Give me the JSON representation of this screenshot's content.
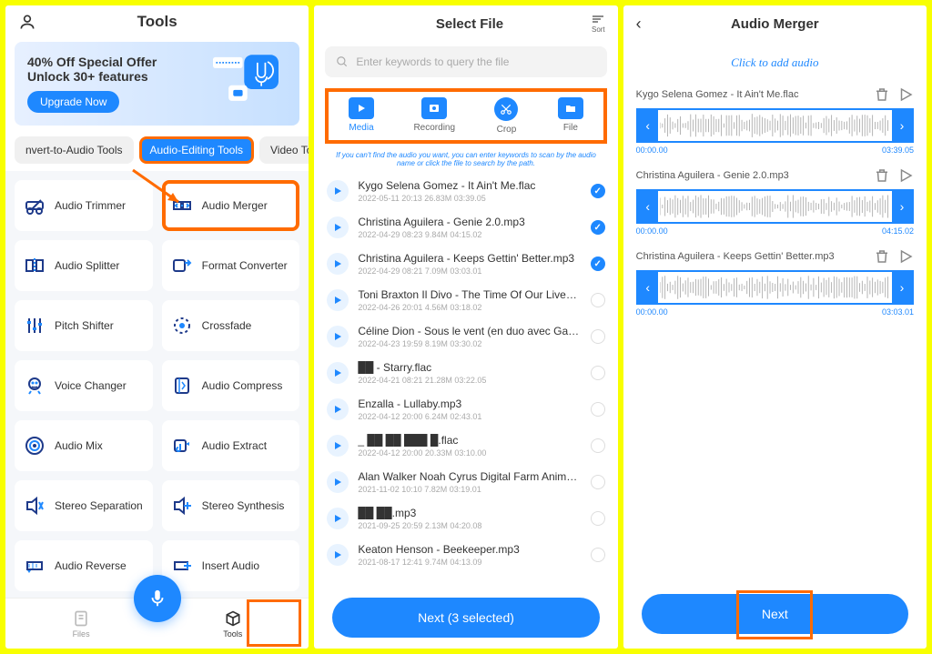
{
  "screen1": {
    "title": "Tools",
    "banner": {
      "line1": "40% Off Special Offer",
      "line2": "Unlock 30+ features",
      "btn": "Upgrade Now"
    },
    "chips": [
      "nvert-to-Audio Tools",
      "Audio-Editing Tools",
      "Video Tools"
    ],
    "active_chip": 1,
    "tools": [
      {
        "name": "Audio Trimmer"
      },
      {
        "name": "Audio Merger",
        "hl": true
      },
      {
        "name": "Audio Splitter"
      },
      {
        "name": "Format Converter"
      },
      {
        "name": "Pitch Shifter"
      },
      {
        "name": "Crossfade"
      },
      {
        "name": "Voice Changer"
      },
      {
        "name": "Audio Compress"
      },
      {
        "name": "Audio Mix"
      },
      {
        "name": "Audio Extract"
      },
      {
        "name": "Stereo Separation"
      },
      {
        "name": "Stereo Synthesis"
      },
      {
        "name": "Audio Reverse"
      },
      {
        "name": "Insert Audio"
      }
    ],
    "nav": {
      "files": "Files",
      "tools": "Tools"
    }
  },
  "screen2": {
    "title": "Select File",
    "sort": "Sort",
    "search_placeholder": "Enter keywords to query the file",
    "tabs": [
      "Media",
      "Recording",
      "Crop",
      "File"
    ],
    "hint": "If you can't find the audio you want, you can enter keywords to scan by the audio name or click the file to search by the path.",
    "files": [
      {
        "name": "Kygo Selena Gomez - It Ain't Me.flac",
        "meta": "2022-05-11 20:13   26.83M   03:39.05",
        "checked": true
      },
      {
        "name": "Christina Aguilera - Genie 2.0.mp3",
        "meta": "2022-04-29 08:23   9.84M   04:15.02",
        "checked": true
      },
      {
        "name": "Christina Aguilera - Keeps Gettin' Better.mp3",
        "meta": "2022-04-29 08:21   7.09M   03:03.01",
        "checked": true
      },
      {
        "name": "Toni Braxton Il Divo - The Time Of Our Lives (Origin…",
        "meta": "2022-04-26 20:01   4.56M   03:18.02",
        "checked": false
      },
      {
        "name": "Céline Dion - Sous le vent (en duo avec Garou).mp3",
        "meta": "2022-04-23 19:59   8.19M   03:30.02",
        "checked": false
      },
      {
        "name": "██ - Starry.flac",
        "meta": "2022-04-21 08:21   21.28M   03:22.05",
        "checked": false
      },
      {
        "name": "Enzalla - Lullaby.mp3",
        "meta": "2022-04-12 20:00   6.24M   02:43.01",
        "checked": false
      },
      {
        "name": "_ ██ ██ ███ █.flac",
        "meta": "2022-04-12 20:00   20.33M   03:10.00",
        "checked": false
      },
      {
        "name": "Alan Walker Noah Cyrus Digital Farm Animals - All …",
        "meta": "2021-11-02 10:10   7.82M   03:19.01",
        "checked": false
      },
      {
        "name": "██ ██.mp3",
        "meta": "2021-09-25 20:59   2.13M   04:20.08",
        "checked": false
      },
      {
        "name": "Keaton Henson - Beekeeper.mp3",
        "meta": "2021-08-17 12:41   9.74M   04:13.09",
        "checked": false
      }
    ],
    "next": "Next (3 selected)"
  },
  "screen3": {
    "title": "Audio Merger",
    "add": "Click to add audio",
    "tracks": [
      {
        "name": "Kygo Selena Gomez - It Ain't Me.flac",
        "start": "00:00.00",
        "end": "03:39.05"
      },
      {
        "name": "Christina Aguilera - Genie 2.0.mp3",
        "start": "00:00.00",
        "end": "04:15.02"
      },
      {
        "name": "Christina Aguilera - Keeps Gettin' Better.mp3",
        "start": "00:00.00",
        "end": "03:03.01"
      }
    ],
    "next": "Next"
  },
  "colors": {
    "primary": "#1e88ff",
    "highlight": "#ff6b00"
  }
}
